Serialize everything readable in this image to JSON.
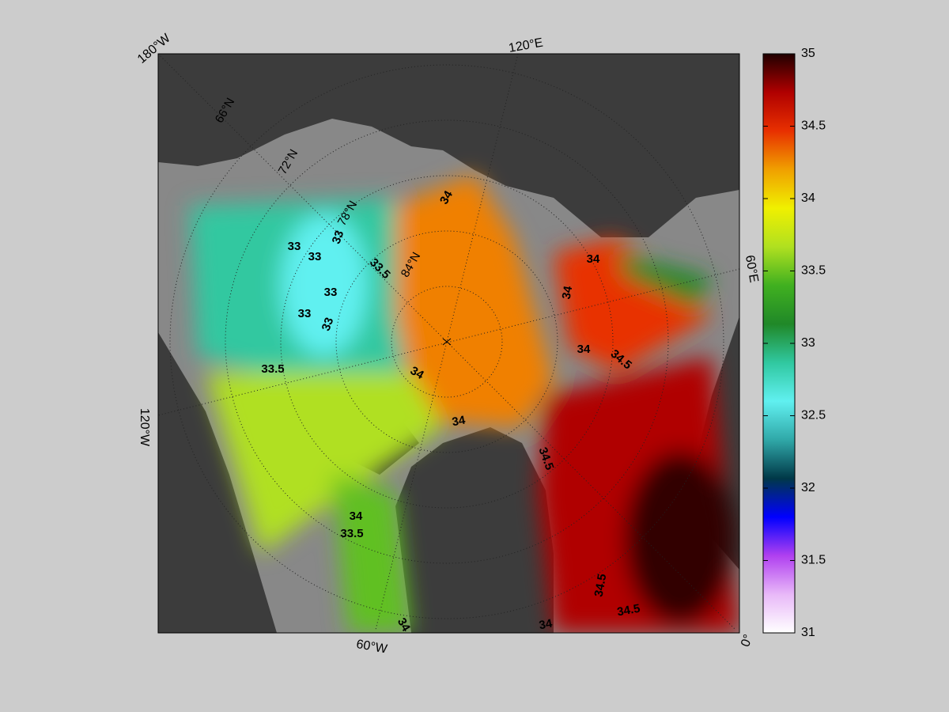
{
  "map": {
    "lon_labels": [
      "180°W",
      "120°E",
      "60°E",
      "0°",
      "60°W",
      "120°W"
    ],
    "lat_labels": [
      "66°N",
      "72°N",
      "78°N",
      "84°N"
    ],
    "contour_labels": [
      "34",
      "33",
      "33",
      "33",
      "33.5",
      "33",
      "33",
      "33",
      "33.5",
      "34",
      "34",
      "34",
      "34",
      "34",
      "34.5",
      "34.5",
      "34",
      "33.5",
      "34.5",
      "34.5",
      "34",
      "34"
    ]
  },
  "colorbar": {
    "range": [
      31,
      35
    ],
    "ticks": [
      31,
      31.5,
      32,
      32.5,
      33,
      33.5,
      34,
      34.5,
      35
    ],
    "colors": [
      "#ffffff",
      "#e8b8f8",
      "#b040f0",
      "#0000ff",
      "#003848",
      "#30a8a8",
      "#60f0f0",
      "#30c8a0",
      "#208828",
      "#40b020",
      "#b0e020",
      "#f0f000",
      "#f0a000",
      "#e83000",
      "#b00000",
      "#200000"
    ]
  }
}
